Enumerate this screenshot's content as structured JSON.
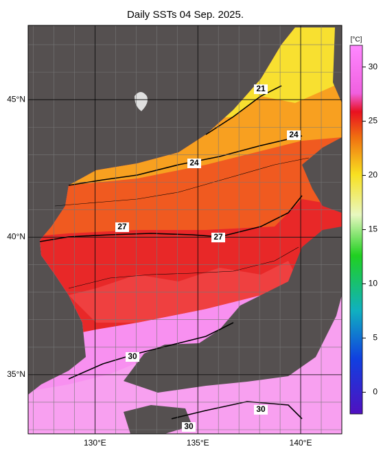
{
  "title": "Daily SSTs 04 Sep. 2025.",
  "map": {
    "lon_range": [
      126.75,
      142
    ],
    "lat_range": [
      32.85,
      47.7
    ],
    "grid_step": 1,
    "lon_ticks": [
      {
        "value": 130,
        "label": "130°E"
      },
      {
        "value": 135,
        "label": "135°E"
      },
      {
        "value": 140,
        "label": "140°E"
      }
    ],
    "lat_ticks": [
      {
        "value": 35,
        "label": "35°N"
      },
      {
        "value": 40,
        "label": "40°N"
      },
      {
        "value": 45,
        "label": "45°N"
      }
    ]
  },
  "colorbar": {
    "unit": "[°C]",
    "range": [
      -2,
      32
    ],
    "ticks": [
      0,
      5,
      10,
      15,
      20,
      25,
      30
    ]
  },
  "contour_labels": [
    "21",
    "24",
    "24",
    "27",
    "27",
    "30",
    "30",
    "30"
  ]
}
